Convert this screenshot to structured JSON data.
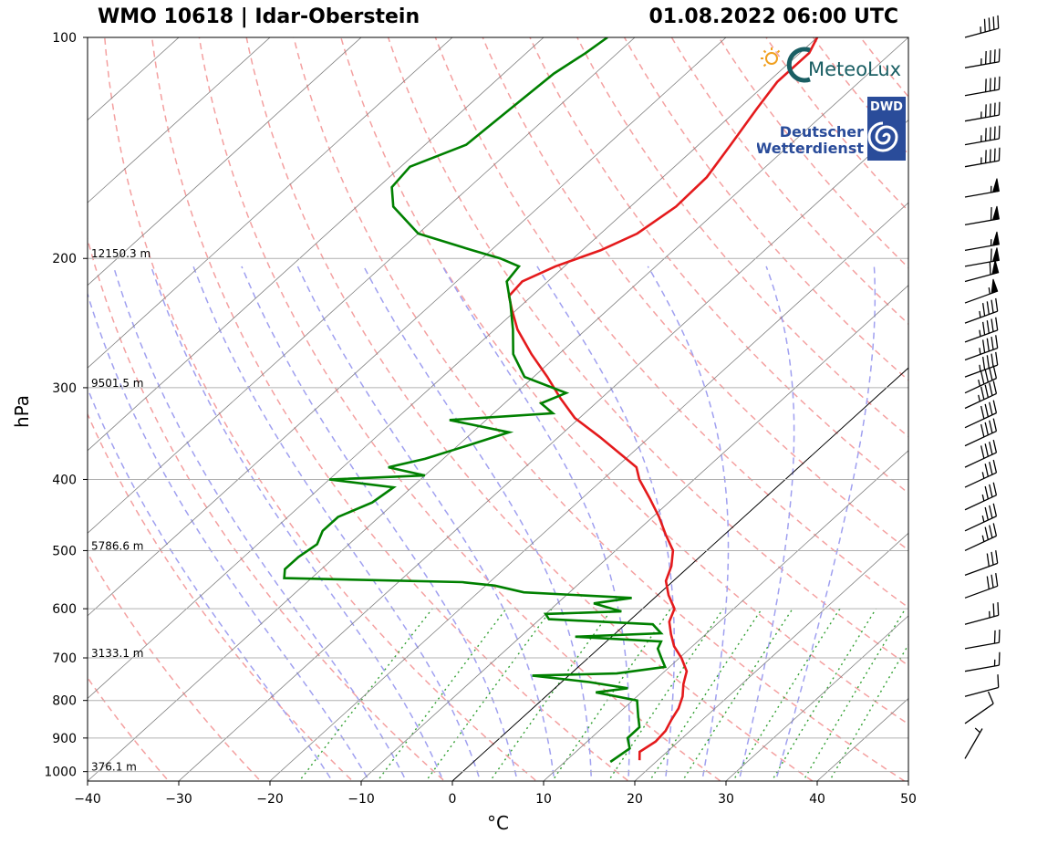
{
  "header": {
    "station": "WMO 10618 | Idar-Oberstein",
    "datetime": "01.08.2022 06:00 UTC"
  },
  "logos": {
    "meteolux": "MeteoLux",
    "dwd_badge": "DWD",
    "dwd_line1": "Deutscher",
    "dwd_line2": "Wetterdienst"
  },
  "colors": {
    "temperature": "#e41a1c",
    "dewpoint": "#008000",
    "dry_adiabat": "#f4a0a0",
    "moist_adiabat": "#a0a0f0",
    "mixing_ratio": "#33a033",
    "isotherm": "#808080",
    "logo_teal": "#1a5e63",
    "dwd_blue": "#2a4c9a"
  },
  "chart_data": {
    "type": "skew-t log-p",
    "xlabel": "°C",
    "ylabel": "hPa",
    "xlim": [
      -40,
      50
    ],
    "ylim": [
      1030,
      100
    ],
    "x_ticks": [
      -40,
      -30,
      -20,
      -10,
      0,
      10,
      20,
      30,
      40,
      50
    ],
    "y_ticks": [
      100,
      200,
      300,
      400,
      500,
      600,
      700,
      800,
      900,
      1000
    ],
    "height_labels": [
      {
        "p": 200,
        "label": "12150.3 m"
      },
      {
        "p": 300,
        "label": "9501.5 m"
      },
      {
        "p": 500,
        "label": "5786.6 m"
      },
      {
        "p": 700,
        "label": "3133.1 m"
      },
      {
        "p": 1000,
        "label": "376.1 m"
      }
    ],
    "temperature_profile": [
      {
        "p": 965,
        "t": 18.0
      },
      {
        "p": 940,
        "t": 17.0
      },
      {
        "p": 910,
        "t": 17.5
      },
      {
        "p": 880,
        "t": 17.3
      },
      {
        "p": 850,
        "t": 16.6
      },
      {
        "p": 820,
        "t": 16.0
      },
      {
        "p": 790,
        "t": 15.0
      },
      {
        "p": 760,
        "t": 13.6
      },
      {
        "p": 730,
        "t": 12.4
      },
      {
        "p": 700,
        "t": 10.2
      },
      {
        "p": 675,
        "t": 8.0
      },
      {
        "p": 650,
        "t": 6.2
      },
      {
        "p": 625,
        "t": 4.5
      },
      {
        "p": 600,
        "t": 3.5
      },
      {
        "p": 575,
        "t": 1.2
      },
      {
        "p": 550,
        "t": -0.8
      },
      {
        "p": 525,
        "t": -2.0
      },
      {
        "p": 500,
        "t": -3.7
      },
      {
        "p": 475,
        "t": -6.5
      },
      {
        "p": 450,
        "t": -9.3
      },
      {
        "p": 425,
        "t": -12.5
      },
      {
        "p": 400,
        "t": -16.0
      },
      {
        "p": 385,
        "t": -17.8
      },
      {
        "p": 370,
        "t": -21.0
      },
      {
        "p": 350,
        "t": -25.5
      },
      {
        "p": 330,
        "t": -30.5
      },
      {
        "p": 310,
        "t": -34.5
      },
      {
        "p": 290,
        "t": -38.5
      },
      {
        "p": 270,
        "t": -43.0
      },
      {
        "p": 250,
        "t": -47.5
      },
      {
        "p": 235,
        "t": -50.5
      },
      {
        "p": 225,
        "t": -52.5
      },
      {
        "p": 215,
        "t": -52.8
      },
      {
        "p": 205,
        "t": -51.0
      },
      {
        "p": 195,
        "t": -48.0
      },
      {
        "p": 185,
        "t": -46.0
      },
      {
        "p": 170,
        "t": -45.0
      },
      {
        "p": 155,
        "t": -45.2
      },
      {
        "p": 140,
        "t": -46.5
      },
      {
        "p": 125,
        "t": -48.0
      },
      {
        "p": 115,
        "t": -49.0
      },
      {
        "p": 105,
        "t": -49.0
      },
      {
        "p": 100,
        "t": -50.0
      }
    ],
    "dewpoint_profile": [
      {
        "p": 970,
        "t": 15.0
      },
      {
        "p": 930,
        "t": 15.5
      },
      {
        "p": 900,
        "t": 14.0
      },
      {
        "p": 870,
        "t": 14.0
      },
      {
        "p": 840,
        "t": 12.5
      },
      {
        "p": 800,
        "t": 10.5
      },
      {
        "p": 780,
        "t": 5.0
      },
      {
        "p": 770,
        "t": 8.0
      },
      {
        "p": 755,
        "t": 3.0
      },
      {
        "p": 740,
        "t": -4.0
      },
      {
        "p": 735,
        "t": 5.0
      },
      {
        "p": 720,
        "t": 9.5
      },
      {
        "p": 700,
        "t": 8.0
      },
      {
        "p": 680,
        "t": 6.5
      },
      {
        "p": 665,
        "t": 6.0
      },
      {
        "p": 655,
        "t": -4.0
      },
      {
        "p": 648,
        "t": 5.0
      },
      {
        "p": 630,
        "t": 3.0
      },
      {
        "p": 620,
        "t": -9.0
      },
      {
        "p": 610,
        "t": -10.0
      },
      {
        "p": 605,
        "t": -2.0
      },
      {
        "p": 590,
        "t": -6.0
      },
      {
        "p": 580,
        "t": -2.5
      },
      {
        "p": 570,
        "t": -15.0
      },
      {
        "p": 558,
        "t": -19.0
      },
      {
        "p": 552,
        "t": -23.0
      },
      {
        "p": 545,
        "t": -43.0
      },
      {
        "p": 530,
        "t": -44.0
      },
      {
        "p": 510,
        "t": -44.0
      },
      {
        "p": 490,
        "t": -43.5
      },
      {
        "p": 470,
        "t": -44.5
      },
      {
        "p": 450,
        "t": -44.5
      },
      {
        "p": 430,
        "t": -42.5
      },
      {
        "p": 410,
        "t": -42.0
      },
      {
        "p": 400,
        "t": -50.0
      },
      {
        "p": 395,
        "t": -40.0
      },
      {
        "p": 385,
        "t": -45.0
      },
      {
        "p": 375,
        "t": -42.0
      },
      {
        "p": 360,
        "t": -39.0
      },
      {
        "p": 345,
        "t": -36.0
      },
      {
        "p": 332,
        "t": -44.0
      },
      {
        "p": 325,
        "t": -33.5
      },
      {
        "p": 315,
        "t": -36.0
      },
      {
        "p": 305,
        "t": -34.5
      },
      {
        "p": 290,
        "t": -41.0
      },
      {
        "p": 270,
        "t": -45.0
      },
      {
        "p": 250,
        "t": -48.0
      },
      {
        "p": 230,
        "t": -51.5
      },
      {
        "p": 215,
        "t": -54.5
      },
      {
        "p": 205,
        "t": -55.0
      },
      {
        "p": 200,
        "t": -58.0
      },
      {
        "p": 195,
        "t": -62.0
      },
      {
        "p": 185,
        "t": -70.0
      },
      {
        "p": 170,
        "t": -76.0
      },
      {
        "p": 160,
        "t": -78.5
      },
      {
        "p": 150,
        "t": -79.0
      },
      {
        "p": 140,
        "t": -75.5
      },
      {
        "p": 125,
        "t": -75.0
      },
      {
        "p": 112,
        "t": -74.5
      },
      {
        "p": 105,
        "t": -73.5
      },
      {
        "p": 100,
        "t": -73.0
      }
    ],
    "wind_barbs": [
      {
        "p": 100,
        "speed_kt": 45,
        "dir_deg": 255
      },
      {
        "p": 110,
        "speed_kt": 45,
        "dir_deg": 260
      },
      {
        "p": 120,
        "speed_kt": 40,
        "dir_deg": 260
      },
      {
        "p": 130,
        "speed_kt": 45,
        "dir_deg": 260
      },
      {
        "p": 140,
        "speed_kt": 45,
        "dir_deg": 260
      },
      {
        "p": 150,
        "speed_kt": 45,
        "dir_deg": 260
      },
      {
        "p": 165,
        "speed_kt": 55,
        "dir_deg": 260
      },
      {
        "p": 180,
        "speed_kt": 60,
        "dir_deg": 260
      },
      {
        "p": 195,
        "speed_kt": 55,
        "dir_deg": 260
      },
      {
        "p": 205,
        "speed_kt": 60,
        "dir_deg": 260
      },
      {
        "p": 215,
        "speed_kt": 60,
        "dir_deg": 255
      },
      {
        "p": 230,
        "speed_kt": 55,
        "dir_deg": 250
      },
      {
        "p": 245,
        "speed_kt": 45,
        "dir_deg": 250
      },
      {
        "p": 260,
        "speed_kt": 45,
        "dir_deg": 250
      },
      {
        "p": 275,
        "speed_kt": 45,
        "dir_deg": 250
      },
      {
        "p": 290,
        "speed_kt": 45,
        "dir_deg": 250
      },
      {
        "p": 305,
        "speed_kt": 45,
        "dir_deg": 245
      },
      {
        "p": 320,
        "speed_kt": 45,
        "dir_deg": 245
      },
      {
        "p": 340,
        "speed_kt": 40,
        "dir_deg": 245
      },
      {
        "p": 360,
        "speed_kt": 40,
        "dir_deg": 245
      },
      {
        "p": 385,
        "speed_kt": 40,
        "dir_deg": 245
      },
      {
        "p": 410,
        "speed_kt": 35,
        "dir_deg": 245
      },
      {
        "p": 440,
        "speed_kt": 35,
        "dir_deg": 245
      },
      {
        "p": 470,
        "speed_kt": 35,
        "dir_deg": 245
      },
      {
        "p": 500,
        "speed_kt": 35,
        "dir_deg": 245
      },
      {
        "p": 540,
        "speed_kt": 30,
        "dir_deg": 250
      },
      {
        "p": 580,
        "speed_kt": 30,
        "dir_deg": 250
      },
      {
        "p": 630,
        "speed_kt": 25,
        "dir_deg": 255
      },
      {
        "p": 680,
        "speed_kt": 20,
        "dir_deg": 260
      },
      {
        "p": 730,
        "speed_kt": 15,
        "dir_deg": 260
      },
      {
        "p": 790,
        "speed_kt": 10,
        "dir_deg": 255
      },
      {
        "p": 860,
        "speed_kt": 10,
        "dir_deg": 235
      },
      {
        "p": 960,
        "speed_kt": 5,
        "dir_deg": 210
      }
    ],
    "grid": true,
    "legend": "none"
  }
}
